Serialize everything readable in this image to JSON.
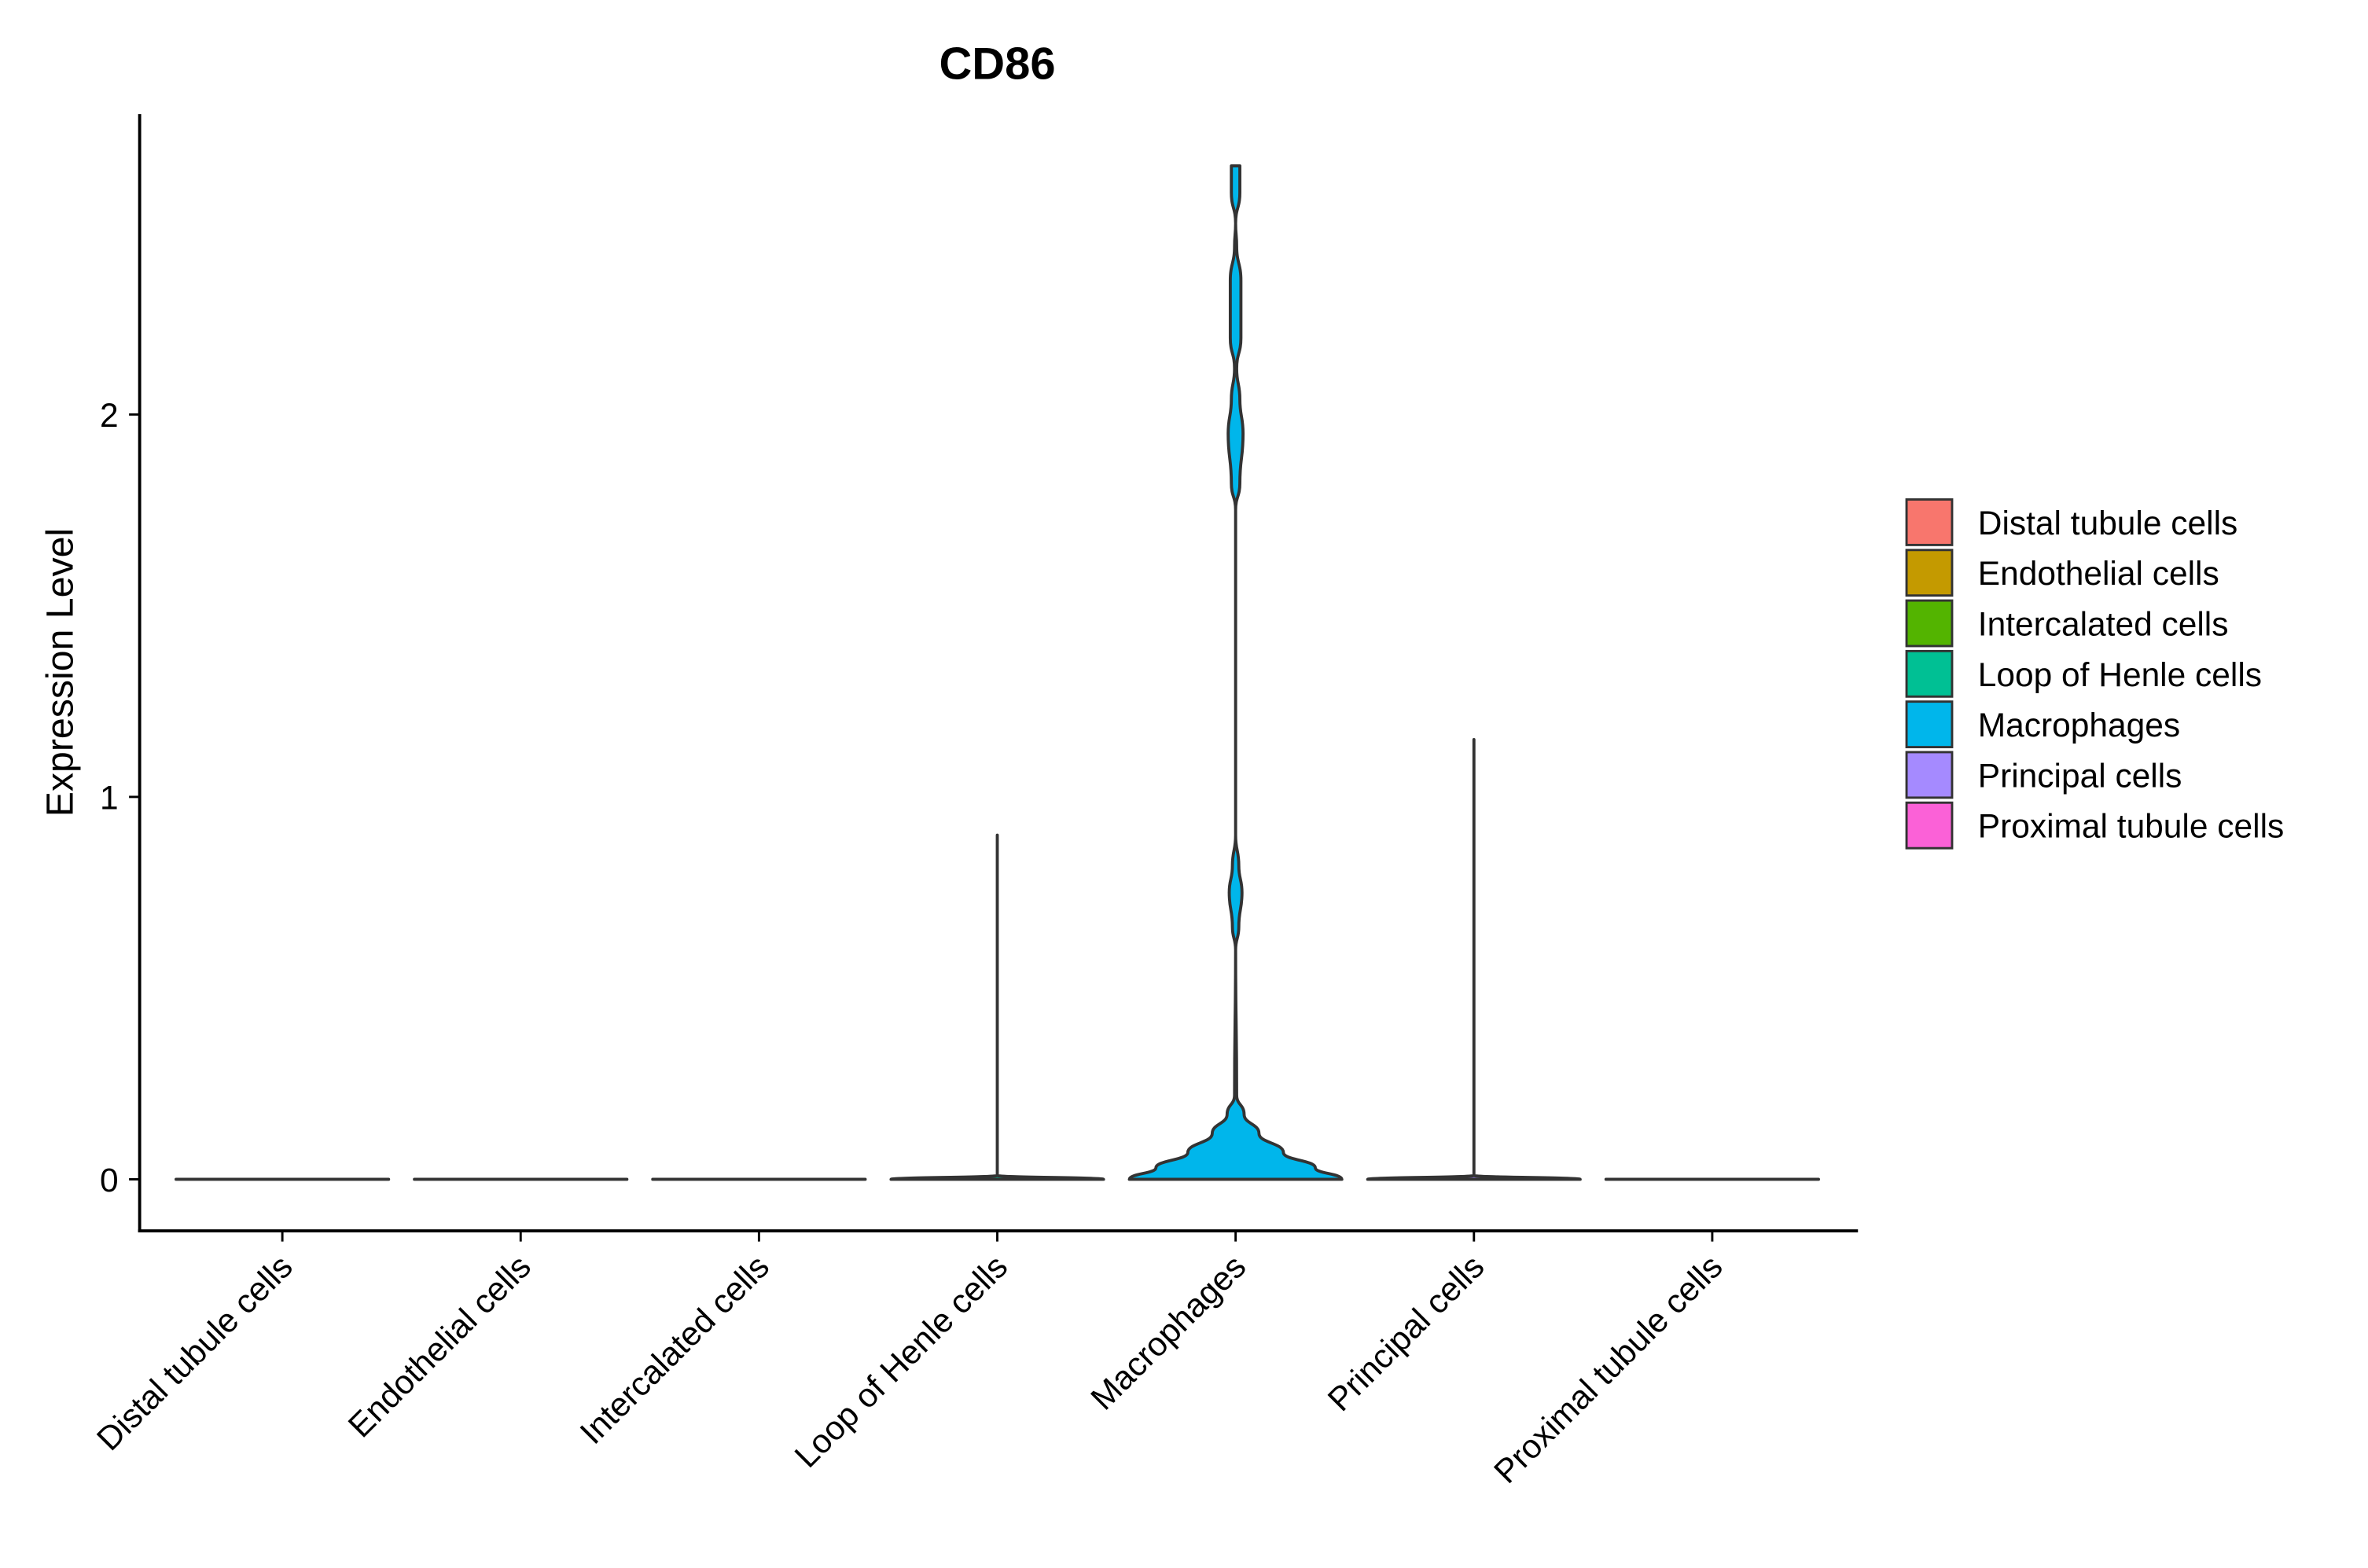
{
  "chart_data": {
    "type": "violin",
    "title": "CD86",
    "xlabel": "",
    "ylabel": "Expression Level",
    "ylim": [
      -0.135,
      2.79
    ],
    "yticks": [
      0,
      1,
      2
    ],
    "ytick_labels": [
      "0",
      "1",
      "2"
    ],
    "grid": false,
    "legend_position": "right",
    "categories": [
      "Distal tubule cells",
      "Endothelial cells",
      "Intercalated cells",
      "Loop of Henle cells",
      "Macrophages",
      "Principal cells",
      "Proximal tubule cells"
    ],
    "colors": [
      "#F8766D",
      "#C49A00",
      "#53B400",
      "#00C094",
      "#00B6EB",
      "#A58AFF",
      "#FB61D7"
    ],
    "violins": [
      {
        "name": "Distal tubule cells",
        "max": 0,
        "profile": [
          [
            0,
            1
          ],
          [
            0,
            1
          ]
        ]
      },
      {
        "name": "Endothelial cells",
        "max": 0,
        "profile": [
          [
            0,
            1
          ],
          [
            0,
            1
          ]
        ]
      },
      {
        "name": "Intercalated cells",
        "max": 0,
        "profile": [
          [
            0,
            1
          ],
          [
            0,
            1
          ]
        ]
      },
      {
        "name": "Loop of Henle cells",
        "max": 0.9,
        "profile": [
          [
            0,
            1
          ],
          [
            0.01,
            0.0
          ],
          [
            0.9,
            0.0
          ]
        ]
      },
      {
        "name": "Macrophages",
        "max": 2.65,
        "profile": [
          [
            0,
            1
          ],
          [
            0.03,
            0.75
          ],
          [
            0.07,
            0.45
          ],
          [
            0.12,
            0.22
          ],
          [
            0.17,
            0.08
          ],
          [
            0.22,
            0.01
          ],
          [
            0.6,
            0.0
          ],
          [
            0.66,
            0.03
          ],
          [
            0.75,
            0.06
          ],
          [
            0.82,
            0.03
          ],
          [
            0.9,
            0.0
          ],
          [
            1.75,
            0.0
          ],
          [
            1.82,
            0.04
          ],
          [
            1.95,
            0.07
          ],
          [
            2.04,
            0.04
          ],
          [
            2.12,
            0.01
          ],
          [
            2.2,
            0.05
          ],
          [
            2.35,
            0.05
          ],
          [
            2.44,
            0.01
          ],
          [
            2.5,
            0.0
          ],
          [
            2.58,
            0.04
          ],
          [
            2.65,
            0.04
          ]
        ]
      },
      {
        "name": "Principal cells",
        "max": 1.15,
        "profile": [
          [
            0,
            1
          ],
          [
            0.01,
            0.0
          ],
          [
            1.15,
            0.0
          ]
        ]
      },
      {
        "name": "Proximal tubule cells",
        "max": 0,
        "profile": [
          [
            0,
            1
          ],
          [
            0,
            1
          ]
        ]
      }
    ],
    "legend": {
      "entries": [
        "Distal tubule cells",
        "Endothelial cells",
        "Intercalated cells",
        "Loop of Henle cells",
        "Macrophages",
        "Principal cells",
        "Proximal tubule cells"
      ]
    }
  }
}
